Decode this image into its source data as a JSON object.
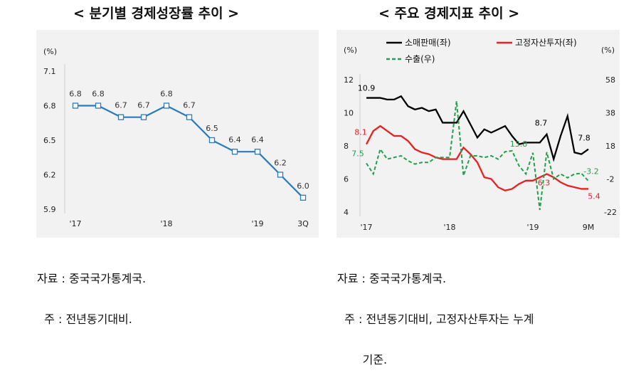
{
  "titles": {
    "left": "< 분기별 경제성장률 추이 >",
    "right": "< 주요 경제지표 추이 >"
  },
  "notes": {
    "left": [
      "자료 : 중국국가통계국.",
      "  주 : 전년동기대비."
    ],
    "right": [
      "자료 : 중국국가통계국.",
      "  주 : 전년동기대비, 고정자산투자는 누계",
      "       기준."
    ]
  },
  "chart_data": [
    {
      "type": "line",
      "title": "< 분기별 경제성장률 추이 >",
      "unit_label": "(%)",
      "ylim": [
        5.9,
        7.1
      ],
      "yticks": [
        "7.1",
        "6.8",
        "6.5",
        "6.2",
        "5.9"
      ],
      "ytick_values": [
        7.1,
        6.8,
        6.5,
        6.2,
        5.9
      ],
      "x_labels": [
        {
          "text": "'17",
          "index": 0
        },
        {
          "text": "'18",
          "index": 4
        },
        {
          "text": "'19",
          "index": 8
        },
        {
          "text": "3Q",
          "index": 10
        }
      ],
      "values": [
        6.8,
        6.8,
        6.7,
        6.7,
        6.8,
        6.7,
        6.5,
        6.4,
        6.4,
        6.2,
        6.0
      ],
      "data_labels": [
        "6.8",
        "6.8",
        "6.7",
        "6.7",
        "6.8",
        "6.7",
        "6.5",
        "6.4",
        "6.4",
        "6.2",
        "6.0"
      ],
      "color": "#2a7ac0",
      "grid": false
    },
    {
      "type": "line",
      "title": "< 주요 경제지표 추이 >",
      "left_unit_label": "(%)",
      "right_unit_label": "(%)",
      "y_left": {
        "lim": [
          4,
          12
        ],
        "ticks": [
          "12",
          "10",
          "8",
          "6",
          "4"
        ],
        "tick_values": [
          12,
          10,
          8,
          6,
          4
        ]
      },
      "y_right": {
        "lim": [
          -22,
          58
        ],
        "ticks": [
          "58",
          "38",
          "18",
          "-2",
          "-22"
        ],
        "tick_values": [
          58,
          38,
          18,
          -2,
          -22
        ]
      },
      "x_labels": [
        {
          "text": "'17",
          "index": 0
        },
        {
          "text": "'18",
          "index": 12
        },
        {
          "text": "'19",
          "index": 24
        },
        {
          "text": "9M",
          "index": 32
        }
      ],
      "legend": {
        "position": "top",
        "items": [
          "소매판매(좌)",
          "고정자산투자(좌)",
          "수출(우)"
        ]
      },
      "series": [
        {
          "name": "소매판매(좌)",
          "axis": "left",
          "color": "#000000",
          "style": "solid",
          "values": [
            10.9,
            10.9,
            10.9,
            10.8,
            10.8,
            11.0,
            10.4,
            10.2,
            10.3,
            10.1,
            10.2,
            9.4,
            9.4,
            9.4,
            10.1,
            9.3,
            8.5,
            9.0,
            8.8,
            9.0,
            9.2,
            8.6,
            8.1,
            8.2,
            8.2,
            8.2,
            8.7,
            7.2,
            8.6,
            9.8,
            7.6,
            7.5,
            7.8
          ]
        },
        {
          "name": "고정자산투자(좌)",
          "axis": "left",
          "color": "#e8201f",
          "style": "solid",
          "values": [
            8.1,
            8.9,
            9.2,
            8.9,
            8.6,
            8.6,
            8.3,
            7.8,
            7.6,
            7.5,
            7.3,
            7.2,
            7.2,
            7.2,
            7.9,
            7.5,
            7.0,
            6.1,
            6.0,
            5.5,
            5.3,
            5.4,
            5.7,
            5.9,
            5.9,
            6.1,
            6.3,
            6.1,
            5.8,
            5.6,
            5.5,
            5.4,
            5.4
          ]
        },
        {
          "name": "수출(우)",
          "axis": "right",
          "color": "#22a04a",
          "style": "dashed",
          "values": [
            7.5,
            1.0,
            16.0,
            10.0,
            11.0,
            12.0,
            9.0,
            7.0,
            8.0,
            8.0,
            11.0,
            11.0,
            11.0,
            45.0,
            0.0,
            12.0,
            12.0,
            11.0,
            12.0,
            10.0,
            14.5,
            15.0,
            6.0,
            1.0,
            13.8,
            -20.7,
            14.2,
            -2.0,
            1.0,
            -1.3,
            1.0,
            1.4,
            -3.2
          ]
        }
      ],
      "data_labels": [
        {
          "series": 0,
          "index": 0,
          "text": "10.9"
        },
        {
          "series": 0,
          "index": 26,
          "text": "8.7"
        },
        {
          "series": 0,
          "index": 32,
          "text": "7.8"
        },
        {
          "series": 1,
          "index": 0,
          "text": "8.1"
        },
        {
          "series": 1,
          "index": 26,
          "text": "6.3"
        },
        {
          "series": 1,
          "index": 32,
          "text": "5.4"
        },
        {
          "series": 2,
          "index": 0,
          "text": "7.5"
        },
        {
          "series": 2,
          "index": 24,
          "text": "13.8"
        },
        {
          "series": 2,
          "index": 32,
          "text": "-3.2"
        }
      ],
      "grid": false
    }
  ]
}
